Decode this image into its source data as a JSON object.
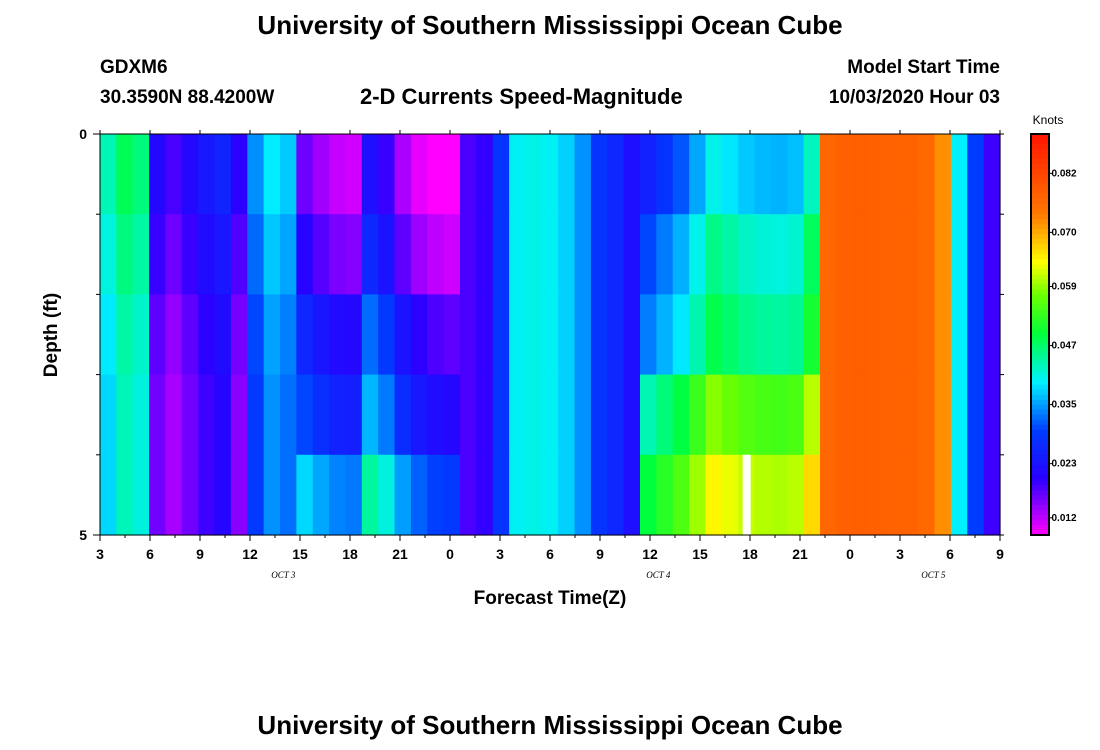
{
  "page": {
    "title_top": "University of Southern Mississippi Ocean Cube",
    "title_bottom": "University of Southern Mississippi Ocean Cube",
    "station_id": "GDXM6",
    "station_coords": "30.3590N 88.4200W",
    "subtitle": "2-D Currents Speed-Magnitude",
    "model_start_label": "Model Start Time",
    "model_start_value": "10/03/2020 Hour 03"
  },
  "chart_data": {
    "type": "heatmap",
    "title": "2-D Currents Speed-Magnitude",
    "xlabel": "Forecast Time(Z)",
    "ylabel": "Depth (ft)",
    "x_range_hours": [
      0,
      54
    ],
    "x_ticks": [
      "3",
      "6",
      "9",
      "12",
      "15",
      "18",
      "21",
      "0",
      "3",
      "6",
      "9",
      "12",
      "15",
      "18",
      "21",
      "0",
      "3",
      "6",
      "9"
    ],
    "date_labels": [
      {
        "text": "OCT 3",
        "hour": 11
      },
      {
        "text": "OCT 4",
        "hour": 33.5
      },
      {
        "text": "OCT 5",
        "hour": 50
      }
    ],
    "y_ticks": [
      "0",
      "5"
    ],
    "ylim": [
      0,
      5
    ],
    "depth_rows": 5,
    "time_columns": 55,
    "colorbar": {
      "unit_label": "Knots",
      "vmin": 0.0085,
      "vmax": 0.09,
      "tick_labels": [
        "0.082",
        "0.070",
        "0.059",
        "0.047",
        "0.035",
        "0.023",
        "0.012"
      ],
      "tick_values": [
        0.082,
        0.07,
        0.059,
        0.047,
        0.035,
        0.023,
        0.012
      ]
    },
    "speed_knots_profile": [
      [
        0,
        0.028
      ],
      [
        0.3,
        0.036
      ],
      [
        0.6,
        0.041
      ],
      [
        1.5,
        0.044
      ],
      [
        2.5,
        0.042
      ],
      [
        2.6,
        0.033
      ],
      [
        2.9,
        0.04
      ],
      [
        3.1,
        0.018
      ],
      [
        4.5,
        0.014
      ],
      [
        6,
        0.019
      ],
      [
        7.5,
        0.022
      ],
      [
        8.3,
        0.016
      ],
      [
        8.7,
        0.014
      ],
      [
        9.3,
        0.03
      ],
      [
        10,
        0.035
      ],
      [
        11,
        0.036
      ],
      [
        12,
        0.027
      ],
      [
        13,
        0.024
      ],
      [
        14.5,
        0.021
      ],
      [
        15.5,
        0.021
      ],
      [
        16,
        0.033
      ],
      [
        17.2,
        0.029
      ],
      [
        18.5,
        0.021
      ],
      [
        20,
        0.018
      ],
      [
        21,
        0.017
      ],
      [
        22,
        0.018
      ],
      [
        23.5,
        0.02
      ],
      [
        24.3,
        0.032
      ],
      [
        25,
        0.04
      ],
      [
        26.5,
        0.041
      ],
      [
        27.5,
        0.039
      ],
      [
        28.7,
        0.036
      ],
      [
        30,
        0.028
      ],
      [
        31,
        0.026
      ],
      [
        31.8,
        0.021
      ],
      [
        32.8,
        0.033
      ],
      [
        33.5,
        0.035
      ],
      [
        34.5,
        0.038
      ],
      [
        35.5,
        0.041
      ],
      [
        36.3,
        0.047
      ],
      [
        37,
        0.049
      ],
      [
        37.8,
        0.047
      ],
      [
        39,
        0.045
      ],
      [
        40.5,
        0.044
      ],
      [
        42,
        0.045
      ],
      [
        43,
        0.053
      ],
      [
        43.5,
        0.076
      ],
      [
        45,
        0.078
      ],
      [
        49,
        0.077
      ],
      [
        50.5,
        0.075
      ],
      [
        51,
        0.052
      ],
      [
        51.5,
        0.04
      ],
      [
        52.5,
        0.03
      ],
      [
        53.3,
        0.02
      ],
      [
        54,
        0.016
      ]
    ],
    "depth_adjust_knots": [
      {
        "hours": [
          0,
          12
        ],
        "rows": [
          0.004,
          0.002,
          0.0,
          -0.001,
          -0.001
        ]
      },
      {
        "hours": [
          12,
          22
        ],
        "rows": [
          -0.01,
          -0.006,
          0.0,
          0.004,
          0.012
        ]
      },
      {
        "hours": [
          22,
          32
        ],
        "rows": [
          0.0,
          0.0,
          0.0,
          0.0,
          0.0
        ]
      },
      {
        "hours": [
          32,
          43
        ],
        "rows": [
          -0.008,
          -0.003,
          0.0,
          0.01,
          0.016
        ]
      },
      {
        "hours": [
          43,
          54
        ],
        "rows": [
          0.0,
          0.0,
          0.0,
          0.0,
          0.0
        ]
      }
    ],
    "missing_cells": [
      {
        "hour": 38.8,
        "row": 4
      }
    ]
  },
  "colors": {
    "background": "#ffffff",
    "text": "#000000",
    "missing": "#ffffff"
  }
}
